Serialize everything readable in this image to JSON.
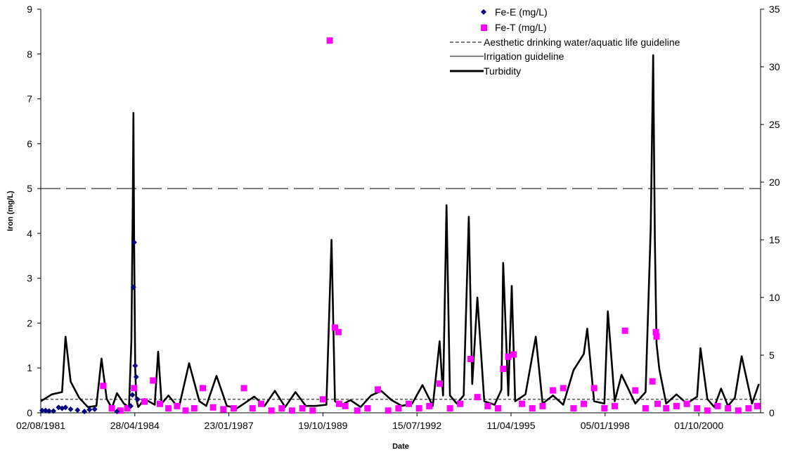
{
  "chart_data": {
    "type": "line",
    "xlabel": "Date",
    "ylabel": "Iron (mg/L)",
    "x_tick_labels": [
      "02/08/1981",
      "28/04/1984",
      "23/01/1987",
      "19/10/1989",
      "15/07/1992",
      "11/04/1995",
      "05/01/1998",
      "01/10/2000"
    ],
    "x_tick_years": [
      1981.58,
      1984.32,
      1987.06,
      1989.8,
      1992.54,
      1995.28,
      1998.02,
      2000.75
    ],
    "xlim": [
      1981.58,
      2002.55
    ],
    "ylim": [
      0,
      9
    ],
    "y_ticks": [
      0,
      1,
      2,
      3,
      4,
      5,
      6,
      7,
      8,
      9
    ],
    "y2lim": [
      0,
      35
    ],
    "y2_ticks": [
      0,
      5,
      10,
      15,
      20,
      25,
      30,
      35
    ],
    "grid": false,
    "legend_position": "top-right",
    "legend": [
      {
        "label": "Fe-E (mg/L)",
        "marker": "diamond",
        "color": "#000080"
      },
      {
        "label": "Fe-T (mg/L)",
        "marker": "square",
        "color": "#ff00ff"
      },
      {
        "label": "Aesthetic drinking water/aquatic life guideline",
        "line": "short-dash",
        "color": "#000000"
      },
      {
        "label": "Irrigation guideline",
        "line": "thin",
        "color": "#000000"
      },
      {
        "label": "Turbidity",
        "line": "thick",
        "color": "#000000"
      }
    ],
    "series": [
      {
        "name": "Fe-E (mg/L)",
        "axis": "left",
        "x": [
          1981.62,
          1981.72,
          1981.82,
          1981.95,
          1982.1,
          1982.2,
          1982.3,
          1982.45,
          1982.65,
          1982.85,
          1983.0,
          1983.15,
          1983.8,
          1984.2,
          1984.25,
          1984.28,
          1984.3,
          1984.33,
          1984.36,
          1984.4
        ],
        "y": [
          0.05,
          0.05,
          0.04,
          0.04,
          0.12,
          0.1,
          0.12,
          0.08,
          0.06,
          0.03,
          0.07,
          0.08,
          0.03,
          0.15,
          0.4,
          2.8,
          3.8,
          1.05,
          0.8,
          0.3
        ]
      },
      {
        "name": "Fe-T (mg/L)",
        "axis": "left",
        "x": [
          1983.4,
          1983.65,
          1983.9,
          1984.1,
          1984.3,
          1984.6,
          1984.85,
          1985.05,
          1985.3,
          1985.55,
          1985.8,
          1986.05,
          1986.3,
          1986.6,
          1986.9,
          1987.2,
          1987.5,
          1987.75,
          1988.0,
          1988.3,
          1988.6,
          1988.9,
          1989.2,
          1989.5,
          1989.8,
          1990.0,
          1990.15,
          1990.25,
          1990.27,
          1990.45,
          1990.8,
          1991.1,
          1991.4,
          1991.7,
          1992.0,
          1992.3,
          1992.6,
          1992.9,
          1993.2,
          1993.5,
          1993.8,
          1994.1,
          1994.3,
          1994.6,
          1994.9,
          1995.05,
          1995.2,
          1995.35,
          1995.6,
          1995.9,
          1996.2,
          1996.5,
          1996.8,
          1997.1,
          1997.4,
          1997.7,
          1998.0,
          1998.3,
          1998.6,
          1998.9,
          1999.2,
          1999.4,
          1999.5,
          1999.52,
          1999.55,
          1999.8,
          2000.1,
          2000.4,
          2000.7,
          2001.0,
          2001.3,
          2001.6,
          2001.9,
          2002.2,
          2002.45
        ],
        "y": [
          0.6,
          0.1,
          0.05,
          0.1,
          0.55,
          0.25,
          0.72,
          0.2,
          0.1,
          0.15,
          0.05,
          0.1,
          0.55,
          0.12,
          0.08,
          0.1,
          0.55,
          0.1,
          0.2,
          0.05,
          0.1,
          0.05,
          0.1,
          0.05,
          0.3,
          8.3,
          1.9,
          1.8,
          0.2,
          0.15,
          0.05,
          0.1,
          0.52,
          0.05,
          0.1,
          0.2,
          0.1,
          0.15,
          0.65,
          0.1,
          0.2,
          1.2,
          0.35,
          0.15,
          0.1,
          0.98,
          1.25,
          1.3,
          0.2,
          0.1,
          0.15,
          0.5,
          0.55,
          0.1,
          0.2,
          0.55,
          0.1,
          0.15,
          1.83,
          0.5,
          0.1,
          0.7,
          1.8,
          1.7,
          0.2,
          0.1,
          0.15,
          0.2,
          0.1,
          0.05,
          0.15,
          0.1,
          0.05,
          0.1,
          0.15
        ]
      },
      {
        "name": "Aesthetic drinking water/aquatic life guideline",
        "axis": "left",
        "constant": 0.3
      },
      {
        "name": "Irrigation guideline",
        "axis": "left",
        "constant": 5
      },
      {
        "name": "Turbidity",
        "axis": "right",
        "x": [
          1981.58,
          1981.9,
          1982.2,
          1982.3,
          1982.45,
          1982.7,
          1982.95,
          1983.2,
          1983.35,
          1983.5,
          1983.65,
          1983.8,
          1984.0,
          1984.15,
          1984.22,
          1984.26,
          1984.28,
          1984.3,
          1984.33,
          1984.36,
          1984.42,
          1984.6,
          1984.9,
          1985.0,
          1985.1,
          1985.3,
          1985.6,
          1985.9,
          1986.2,
          1986.4,
          1986.7,
          1987.0,
          1987.3,
          1987.5,
          1987.8,
          1988.1,
          1988.4,
          1988.7,
          1989.0,
          1989.3,
          1989.6,
          1989.9,
          1990.05,
          1990.15,
          1990.25,
          1990.35,
          1990.6,
          1990.9,
          1991.2,
          1991.5,
          1991.8,
          1992.1,
          1992.4,
          1992.7,
          1993.0,
          1993.2,
          1993.3,
          1993.4,
          1993.5,
          1993.7,
          1993.9,
          1994.05,
          1994.15,
          1994.3,
          1994.5,
          1994.8,
          1995.0,
          1995.05,
          1995.2,
          1995.3,
          1995.4,
          1995.7,
          1996.0,
          1996.2,
          1996.5,
          1996.8,
          1997.1,
          1997.4,
          1997.5,
          1997.7,
          1998.0,
          1998.1,
          1998.3,
          1998.5,
          1998.9,
          1999.2,
          1999.35,
          1999.42,
          1999.47,
          1999.52,
          1999.6,
          1999.8,
          2000.1,
          2000.4,
          2000.7,
          2000.8,
          2001.0,
          2001.2,
          2001.4,
          2001.6,
          2001.8,
          2002.0,
          2002.3,
          2002.5
        ],
        "y": [
          1.0,
          1.6,
          1.8,
          6.6,
          2.7,
          1.3,
          0.5,
          0.6,
          4.7,
          1.2,
          0.4,
          1.7,
          0.8,
          0.5,
          6.2,
          18.0,
          26.0,
          15.0,
          4.0,
          1.2,
          0.5,
          1.2,
          0.7,
          5.3,
          0.8,
          1.5,
          0.4,
          4.3,
          1.0,
          0.6,
          3.2,
          0.6,
          0.4,
          0.8,
          1.4,
          0.6,
          1.9,
          0.5,
          1.8,
          0.6,
          0.6,
          0.7,
          15.0,
          1.0,
          0.8,
          0.7,
          1.1,
          0.5,
          1.5,
          1.9,
          1.1,
          0.6,
          0.8,
          2.4,
          0.6,
          6.2,
          1.5,
          18.0,
          1.5,
          0.8,
          1.5,
          17.0,
          2.5,
          10.0,
          1.0,
          0.7,
          2.0,
          13.0,
          1.5,
          11.0,
          1.0,
          1.6,
          6.6,
          0.8,
          1.5,
          0.7,
          3.7,
          5.1,
          7.3,
          1.0,
          0.8,
          8.8,
          1.0,
          3.3,
          0.8,
          1.8,
          16.0,
          31.0,
          15.0,
          6.0,
          3.8,
          0.8,
          1.6,
          0.8,
          1.4,
          5.6,
          1.2,
          0.5,
          2.1,
          0.6,
          1.3,
          4.9,
          0.8,
          2.5
        ]
      }
    ]
  }
}
